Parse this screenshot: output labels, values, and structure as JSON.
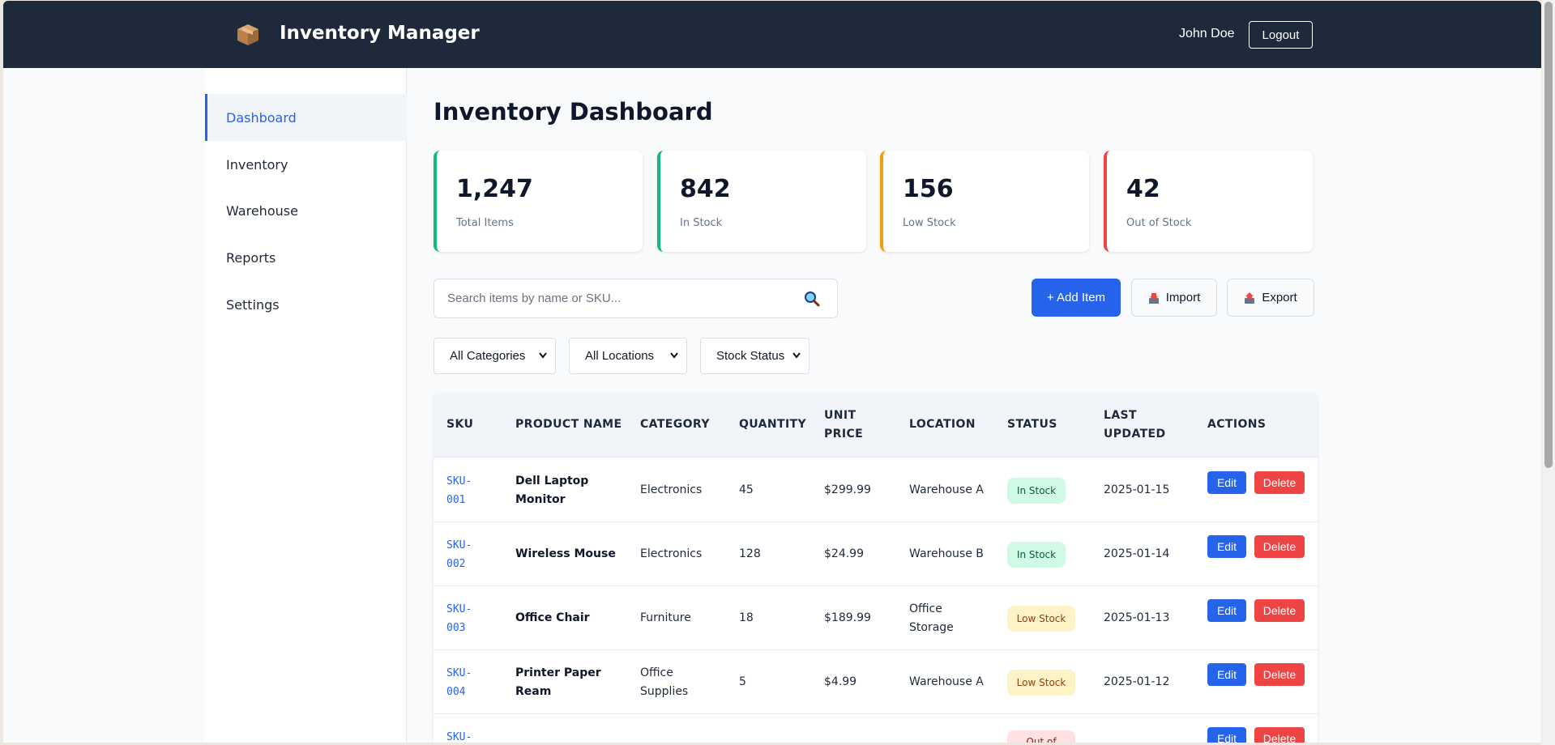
{
  "header": {
    "title": "Inventory Manager",
    "logo_icon": "package-box-icon",
    "user_name": "John Doe",
    "logout_label": "Logout"
  },
  "sidebar": {
    "items": [
      {
        "label": "Dashboard",
        "active": true
      },
      {
        "label": "Inventory",
        "active": false
      },
      {
        "label": "Warehouse",
        "active": false
      },
      {
        "label": "Reports",
        "active": false
      },
      {
        "label": "Settings",
        "active": false
      }
    ]
  },
  "main": {
    "title": "Inventory Dashboard"
  },
  "stats": [
    {
      "value": "1,247",
      "label": "Total Items",
      "color": "#10b981"
    },
    {
      "value": "842",
      "label": "In Stock",
      "color": "#10b981"
    },
    {
      "value": "156",
      "label": "Low Stock",
      "color": "#f59e0b"
    },
    {
      "value": "42",
      "label": "Out of Stock",
      "color": "#ef4444"
    }
  ],
  "toolbar": {
    "search_placeholder": "Search items by name or SKU...",
    "add_label": "+ Add Item",
    "import_label": "Import",
    "export_label": "Export"
  },
  "filters": {
    "category": "All Categories",
    "location": "All Locations",
    "status": "Stock Status"
  },
  "table": {
    "headers": {
      "sku": "SKU",
      "product_name_1": "PRODUCT NAME",
      "category": "CATEGORY",
      "quantity": "QUANTITY",
      "unit_price_1": "UNIT",
      "unit_price_2": "PRICE",
      "location": "LOCATION",
      "status": "STATUS",
      "last_updated_1": "LAST",
      "last_updated_2": "UPDATED",
      "actions": "ACTIONS"
    },
    "edit_label": "Edit",
    "delete_label": "Delete",
    "rows": [
      {
        "sku_1": "SKU-",
        "sku_2": "001",
        "name_1": "Dell Laptop",
        "name_2": "Monitor",
        "category_1": "Electronics",
        "category_2": "",
        "quantity": "45",
        "price": "$299.99",
        "location_1": "Warehouse A",
        "location_2": "",
        "status": "In Stock",
        "updated": "2025-01-15"
      },
      {
        "sku_1": "SKU-",
        "sku_2": "002",
        "name_1": "Wireless Mouse",
        "name_2": "",
        "category_1": "Electronics",
        "category_2": "",
        "quantity": "128",
        "price": "$24.99",
        "location_1": "Warehouse B",
        "location_2": "",
        "status": "In Stock",
        "updated": "2025-01-14"
      },
      {
        "sku_1": "SKU-",
        "sku_2": "003",
        "name_1": "Office Chair",
        "name_2": "",
        "category_1": "Furniture",
        "category_2": "",
        "quantity": "18",
        "price": "$189.99",
        "location_1": "Office",
        "location_2": "Storage",
        "status": "Low Stock",
        "updated": "2025-01-13"
      },
      {
        "sku_1": "SKU-",
        "sku_2": "004",
        "name_1": "Printer Paper",
        "name_2": "Ream",
        "category_1": "Office",
        "category_2": "Supplies",
        "quantity": "5",
        "price": "$4.99",
        "location_1": "Warehouse A",
        "location_2": "",
        "status": "Low Stock",
        "updated": "2025-01-12"
      },
      {
        "sku_1": "SKU-",
        "sku_2": "",
        "name_1": "",
        "name_2": "",
        "category_1": "",
        "category_2": "",
        "quantity": "",
        "price": "",
        "location_1": "",
        "location_2": "",
        "status": "Out of",
        "updated": ""
      }
    ]
  }
}
